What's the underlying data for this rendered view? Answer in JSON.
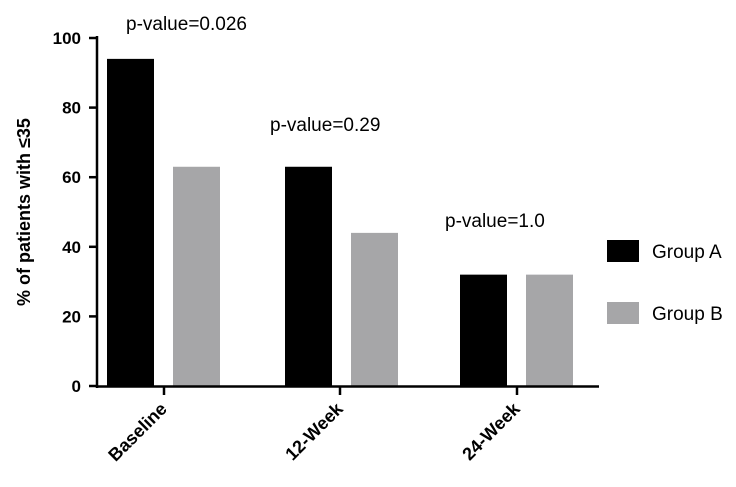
{
  "chart_data": {
    "type": "bar",
    "categories": [
      "Baseline",
      "12-Week",
      "24-Week"
    ],
    "series": [
      {
        "name": "Group A",
        "values": [
          94,
          63,
          32
        ],
        "color": "#000000"
      },
      {
        "name": "Group B",
        "values": [
          63,
          44,
          32
        ],
        "color": "#a6a6a8"
      }
    ],
    "ylabel": "% of patients with ≤35",
    "xlabel": "",
    "ylim": [
      0,
      100
    ],
    "yticks": [
      0,
      20,
      40,
      60,
      80,
      100
    ],
    "grid": false,
    "legend_position": "right",
    "annotations": [
      "p-value=0.026",
      "p-value=0.29",
      "p-value=1.0"
    ]
  }
}
